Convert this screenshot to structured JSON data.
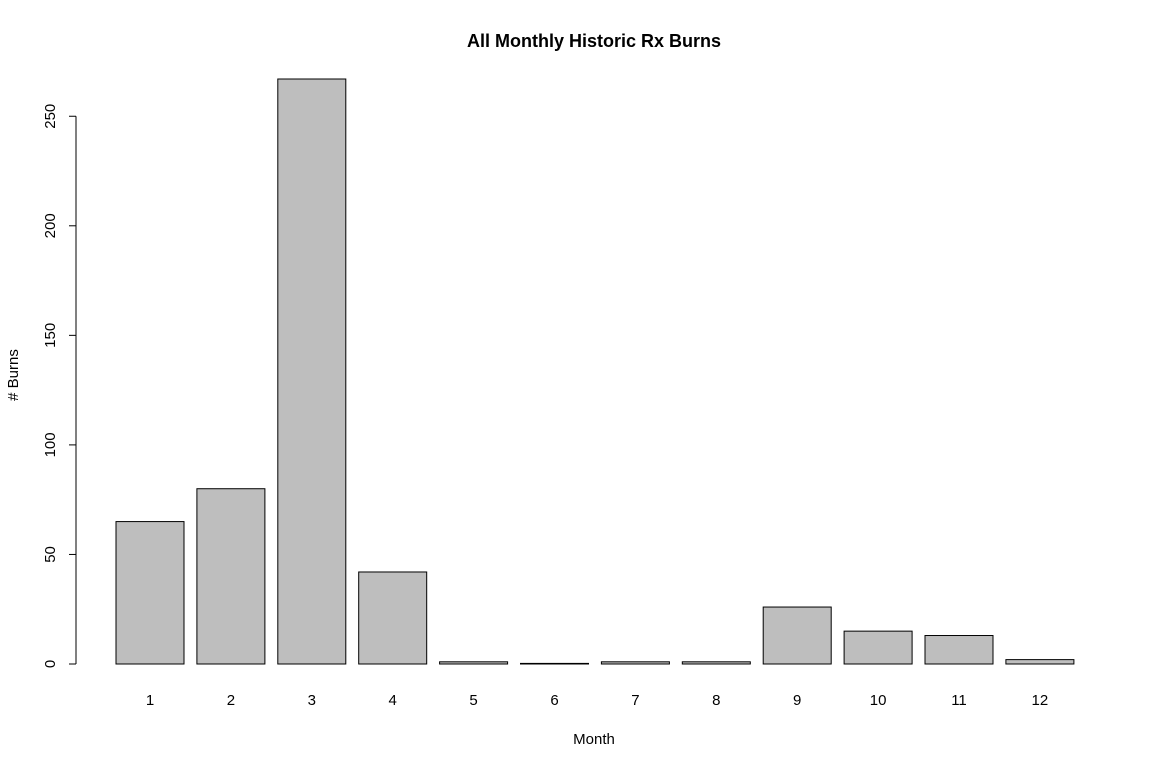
{
  "chart_data": {
    "type": "bar",
    "title": "All Monthly Historic Rx Burns",
    "xlabel": "Month",
    "ylabel": "# Burns",
    "categories": [
      "1",
      "2",
      "3",
      "4",
      "5",
      "6",
      "7",
      "8",
      "9",
      "10",
      "11",
      "12"
    ],
    "values": [
      65,
      80,
      267,
      42,
      1,
      0,
      1,
      1,
      26,
      15,
      13,
      2
    ],
    "ylim": [
      0,
      267
    ],
    "yticks": [
      "0",
      "50",
      "100",
      "150",
      "200",
      "250"
    ],
    "grid": false,
    "bar_color": "#bebebe",
    "edge_color": "#000000"
  }
}
